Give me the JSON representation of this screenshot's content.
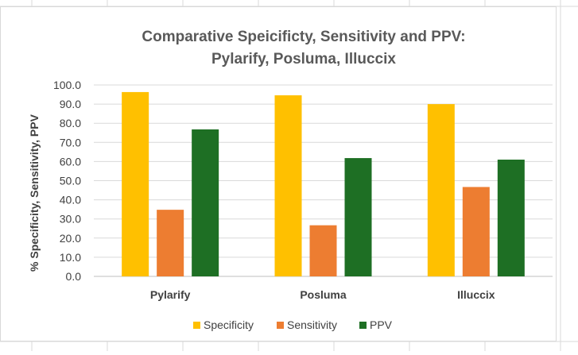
{
  "chart_data": {
    "type": "bar",
    "title": [
      "Comparative Speicificty, Sensitivity and PPV:",
      "Pylarify, Posluma, Illuccix"
    ],
    "xlabel": "",
    "ylabel": "% Specificity, Sensitivity, PPV",
    "categories": [
      "Pylarify",
      "Posluma",
      "Illuccix"
    ],
    "series": [
      {
        "name": "Specificity",
        "color": "#FFC000",
        "values": [
          96.3,
          94.6,
          90.0
        ]
      },
      {
        "name": "Sensitivity",
        "color": "#ED7D31",
        "values": [
          34.8,
          26.7,
          46.7
        ]
      },
      {
        "name": "PPV",
        "color": "#1E6F24",
        "values": [
          76.8,
          61.8,
          61.0
        ]
      }
    ],
    "ylim": [
      0,
      100
    ],
    "yticks": [
      "0.0",
      "10.0",
      "20.0",
      "30.0",
      "40.0",
      "50.0",
      "60.0",
      "70.0",
      "80.0",
      "90.0",
      "100.0"
    ],
    "grid": true,
    "legend_position": "bottom"
  }
}
